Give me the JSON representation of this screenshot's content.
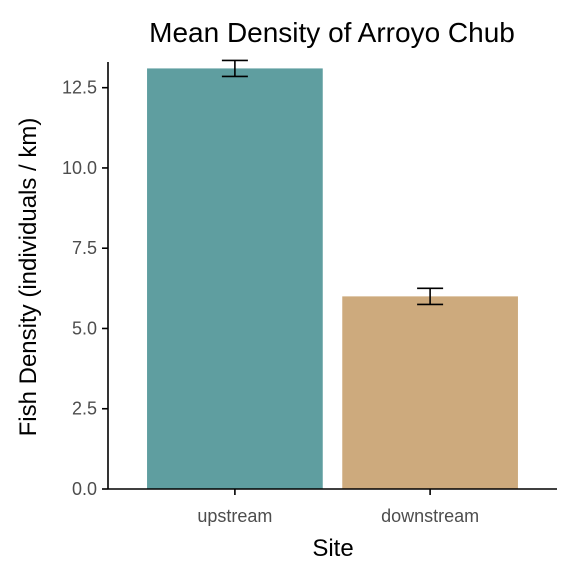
{
  "chart_data": {
    "type": "bar",
    "title": "Mean Density of Arroyo Chub",
    "xlabel": "Site",
    "ylabel": "Fish Density (individuals / km)",
    "categories": [
      "upstream",
      "downstream"
    ],
    "values": [
      13.1,
      6.0
    ],
    "error_low": [
      12.85,
      5.75
    ],
    "error_high": [
      13.35,
      6.25
    ],
    "colors": [
      "#5f9ea0",
      "#cdaa7d"
    ],
    "ylim": [
      0,
      13.3
    ],
    "yticks": [
      0.0,
      2.5,
      5.0,
      7.5,
      10.0,
      12.5
    ],
    "ytick_labels": [
      "0.0",
      "2.5",
      "5.0",
      "7.5",
      "10.0",
      "12.5"
    ],
    "grid": false,
    "legend": "none"
  }
}
